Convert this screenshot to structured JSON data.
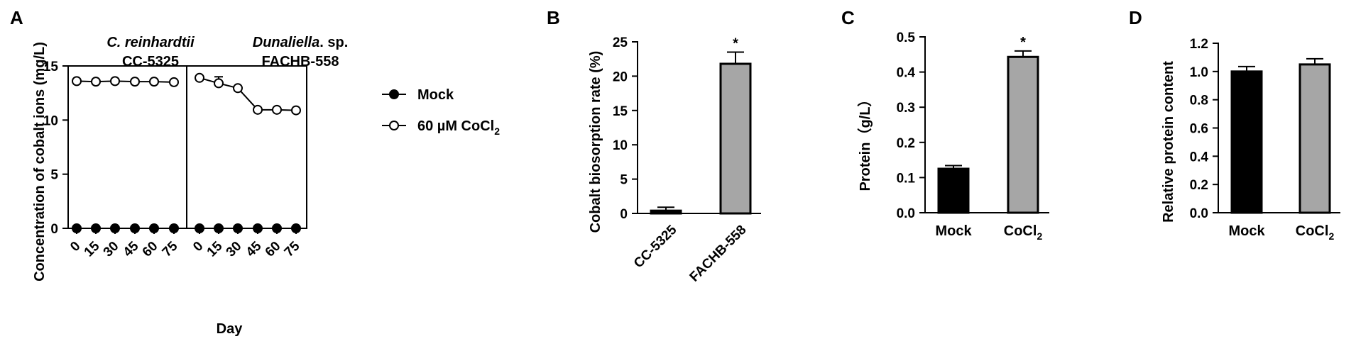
{
  "figure": {
    "panels": [
      {
        "label": "A"
      },
      {
        "label": "B"
      },
      {
        "label": "C"
      },
      {
        "label": "D"
      }
    ]
  },
  "chart_data": [
    {
      "type": "line",
      "panel": "A",
      "ylabel": "Concentration of cobalt ions (mg/L)",
      "xlabel": "Day",
      "ylim": [
        0,
        15
      ],
      "yticks": [
        0,
        5,
        10,
        15
      ],
      "x": [
        0,
        15,
        30,
        45,
        60,
        75
      ],
      "legend": {
        "position": "right",
        "entries": [
          "Mock",
          "60 µM CoCl₂"
        ]
      },
      "facets": [
        {
          "title_line1": "C. reinhardtii",
          "title_line2": "CC-5325",
          "series": [
            {
              "name": "Mock",
              "values": [
                0,
                0,
                0,
                0,
                0,
                0
              ]
            },
            {
              "name": "60 µM CoCl₂",
              "values": [
                13.6,
                13.55,
                13.6,
                13.55,
                13.55,
                13.5
              ],
              "errors": [
                0.1,
                0.1,
                0.1,
                0.1,
                0.1,
                0.1
              ]
            }
          ]
        },
        {
          "title_line1": "Dunaliella. sp.",
          "title_line2": "FACHB-558",
          "series": [
            {
              "name": "Mock",
              "values": [
                0,
                0,
                0,
                0,
                0,
                0
              ]
            },
            {
              "name": "60 µM CoCl₂",
              "values": [
                13.9,
                13.4,
                12.95,
                10.95,
                10.95,
                10.9
              ],
              "errors": [
                0.15,
                0.6,
                0.15,
                0.1,
                0.1,
                0.1
              ]
            }
          ]
        }
      ]
    },
    {
      "type": "bar",
      "panel": "B",
      "ylabel": "Cobalt biosorption rate (%)",
      "ylim": [
        0,
        25
      ],
      "yticks": [
        0,
        5,
        10,
        15,
        20,
        25
      ],
      "categories": [
        "CC-5325",
        "FACHB-558"
      ],
      "values": [
        0.4,
        21.8
      ],
      "errors": [
        0.5,
        1.7
      ],
      "significance": [
        "",
        "*"
      ],
      "colors": [
        "#000000",
        "#a6a6a6"
      ]
    },
    {
      "type": "bar",
      "panel": "C",
      "ylabel": "Protein（g/L）",
      "ylim": [
        0,
        0.5
      ],
      "yticks": [
        "0.0",
        "0.1",
        "0.2",
        "0.3",
        "0.4",
        "0.5"
      ],
      "categories": [
        "Mock",
        "CoCl₂"
      ],
      "values": [
        0.125,
        0.443
      ],
      "errors": [
        0.009,
        0.017
      ],
      "significance": [
        "",
        "*"
      ],
      "colors": [
        "#000000",
        "#a6a6a6"
      ]
    },
    {
      "type": "bar",
      "panel": "D",
      "ylabel": "Relative protein content",
      "ylim": [
        0,
        1.2
      ],
      "yticks": [
        "0.0",
        "0.2",
        "0.4",
        "0.6",
        "0.8",
        "1.0",
        "1.2"
      ],
      "categories": [
        "Mock",
        "CoCl₂"
      ],
      "values": [
        1.0,
        1.05
      ],
      "errors": [
        0.035,
        0.04
      ],
      "significance": [
        "",
        ""
      ],
      "colors": [
        "#000000",
        "#a6a6a6"
      ]
    }
  ]
}
